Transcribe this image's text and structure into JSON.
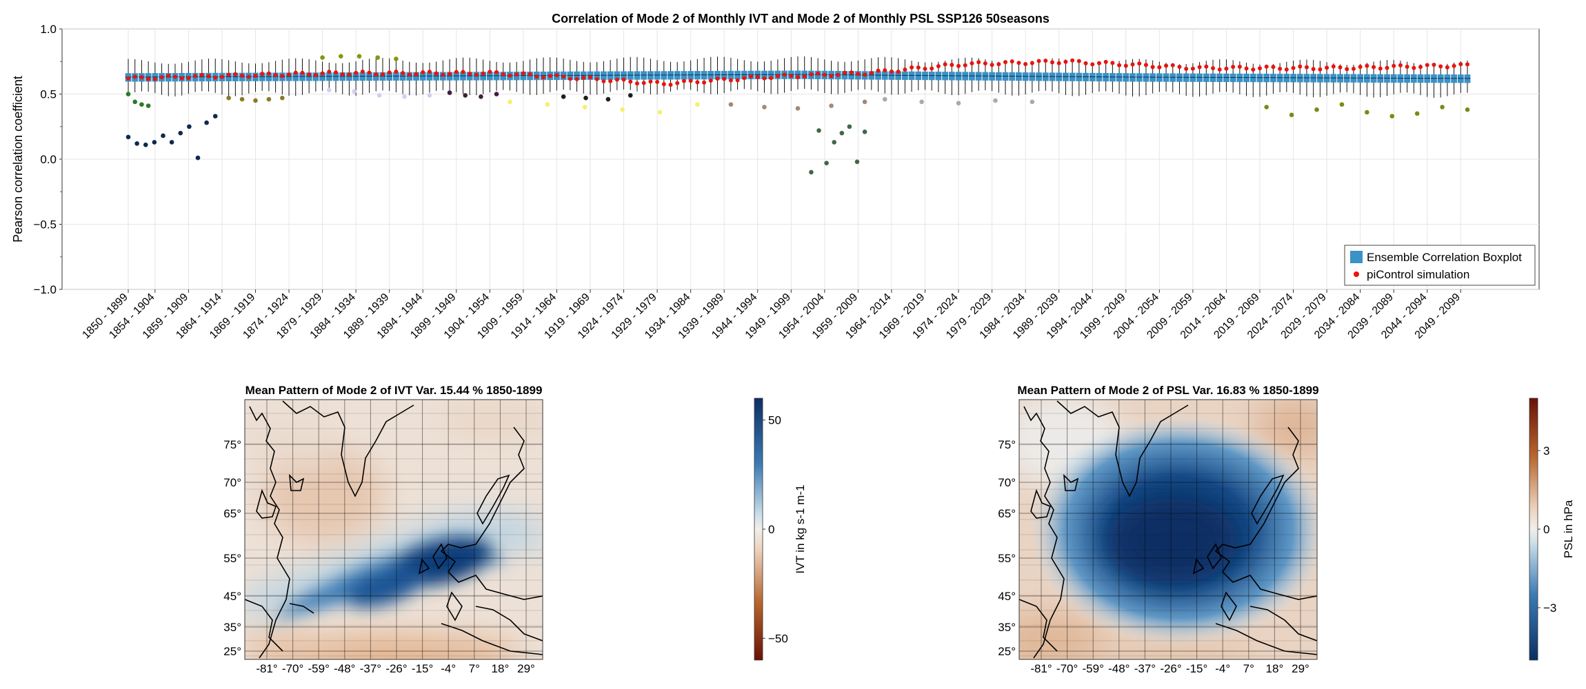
{
  "top": {
    "title": "Correlation of Mode 2 of Monthly IVT and Mode 2 of Monthly PSL SSP126 50seasons",
    "ylabel": "Pearson correlation coefficient",
    "ylim": [
      -1.0,
      1.0
    ],
    "yticks": [
      "1.0",
      "0.5",
      "0.0",
      "−0.5",
      "−1.0"
    ],
    "ytick_values": [
      1.0,
      0.5,
      0.0,
      -0.5,
      -1.0
    ],
    "legend": {
      "placement": "bottom-right",
      "items": [
        {
          "label": "Ensemble Correlation Boxplot",
          "color": "#3a92c6"
        },
        {
          "label": "piControl simulation",
          "color": "#e8140e"
        }
      ]
    },
    "xticks": [
      "1850 - 1899",
      "1854 - 1904",
      "1859 - 1909",
      "1864 - 1914",
      "1869 - 1919",
      "1874 - 1924",
      "1879 - 1929",
      "1884 - 1934",
      "1889 - 1939",
      "1894 - 1944",
      "1899 - 1949",
      "1904 - 1954",
      "1909 - 1959",
      "1914 - 1964",
      "1919 - 1969",
      "1924 - 1974",
      "1929 - 1979",
      "1934 - 1984",
      "1939 - 1989",
      "1944 - 1994",
      "1949 - 1999",
      "1954 - 2004",
      "1959 - 2009",
      "1964 - 2014",
      "1969 - 2019",
      "1974 - 2024",
      "1979 - 2029",
      "1984 - 2034",
      "1989 - 2039",
      "1994 - 2044",
      "1999 - 2049",
      "2004 - 2054",
      "2009 - 2059",
      "2014 - 2064",
      "2019 - 2069",
      "2024 - 2074",
      "2029 - 2079",
      "2034 - 2084",
      "2039 - 2089",
      "2044 - 2094",
      "2049 - 2099"
    ]
  },
  "maps": {
    "left": {
      "title": "Mean Pattern of Mode 2 of IVT Var. 15.44 % 1850-1899",
      "colorbar_label": "IVT in kg s-1 m-1",
      "colorbar_ticks": [
        "50",
        "0",
        "−50"
      ],
      "colorbar_tick_values": [
        50,
        0,
        -50
      ],
      "colorbar_range": [
        -60,
        60
      ]
    },
    "right": {
      "title": "Mean Pattern of Mode 2 of PSL Var. 16.83 % 1850-1899",
      "colorbar_label": "PSL in hPa",
      "colorbar_ticks": [
        "3",
        "0",
        "−3"
      ],
      "colorbar_tick_values": [
        3,
        0,
        -3
      ],
      "colorbar_range": [
        -5,
        5
      ]
    },
    "lat_ticks": [
      "75°",
      "70°",
      "65°",
      "55°",
      "45°",
      "35°",
      "25°"
    ],
    "lon_ticks": [
      "-81°",
      "-70°",
      "-59°",
      "-48°",
      "-37°",
      "-26°",
      "-15°",
      "-4°",
      "7°",
      "18°",
      "29°"
    ]
  },
  "colors": {
    "box": "#3a92c6",
    "picontrol": "#e8140e",
    "colormap": [
      "#0b2f63",
      "#2f6fa7",
      "#b6d2e2",
      "#f2eeea",
      "#e6c1a2",
      "#b35f2b",
      "#6a1007"
    ]
  },
  "chart_data": {
    "type": "box",
    "x_unit": "50-year window start, step 1 year",
    "n_windows": 201,
    "ensemble_median": {
      "x_start_years": [
        1850,
        1900,
        1950,
        2000,
        2050
      ],
      "y": [
        0.63,
        0.64,
        0.65,
        0.63,
        0.62
      ]
    },
    "picontrol": {
      "x_start_years": [
        1850,
        1865,
        1880,
        1905,
        1915,
        1930,
        1945,
        1960,
        1975,
        1990,
        2010,
        2030,
        2050
      ],
      "y": [
        0.62,
        0.64,
        0.66,
        0.66,
        0.63,
        0.58,
        0.63,
        0.66,
        0.73,
        0.75,
        0.7,
        0.7,
        0.72
      ]
    },
    "outlier_groups": [
      {
        "x_start_years": [
          1850,
          1863
        ],
        "y": [
          0.17,
          0.12,
          0.11,
          0.13,
          0.18,
          0.13,
          0.2,
          0.25,
          0.01,
          0.28,
          0.33
        ],
        "color": "#0d2a4e"
      },
      {
        "x_start_years": [
          1850,
          1853
        ],
        "y": [
          0.5,
          0.44,
          0.42,
          0.41
        ],
        "color": "#2a7a2a"
      },
      {
        "x_start_years": [
          1865,
          1873
        ],
        "y": [
          0.47,
          0.46,
          0.45,
          0.46,
          0.47
        ],
        "color": "#8a7a25"
      },
      {
        "x_start_years": [
          1879,
          1890
        ],
        "y": [
          0.78,
          0.79,
          0.79,
          0.78,
          0.77
        ],
        "color": "#7f9a10"
      },
      {
        "x_start_years": [
          1880,
          1895
        ],
        "y": [
          0.53,
          0.52,
          0.49,
          0.48,
          0.49
        ],
        "color": "#cfd0f4"
      },
      {
        "x_start_years": [
          1898,
          1905
        ],
        "y": [
          0.51,
          0.49,
          0.48,
          0.5
        ],
        "color": "#3d1f3f"
      },
      {
        "x_start_years": [
          1907,
          1935
        ],
        "y": [
          0.44,
          0.42,
          0.4,
          0.38,
          0.36,
          0.42
        ],
        "color": "#f5f06a"
      },
      {
        "x_start_years": [
          1915,
          1925
        ],
        "y": [
          0.48,
          0.47,
          0.46,
          0.49
        ],
        "color": "#1e1e1e"
      },
      {
        "x_start_years": [
          1940,
          1960
        ],
        "y": [
          0.42,
          0.4,
          0.39,
          0.41,
          0.44
        ],
        "color": "#a48878"
      },
      {
        "x_start_years": [
          1952,
          1960
        ],
        "y": [
          -0.1,
          0.22,
          -0.03,
          0.13,
          0.2,
          0.25,
          -0.02,
          0.21
        ],
        "color": "#3f6848"
      },
      {
        "x_start_years": [
          1963,
          1985
        ],
        "y": [
          0.46,
          0.44,
          0.43,
          0.45,
          0.44
        ],
        "color": "#b3a7a3"
      },
      {
        "x_start_years": [
          2020,
          2050
        ],
        "y": [
          0.4,
          0.34,
          0.38,
          0.42,
          0.36,
          0.33,
          0.35,
          0.4,
          0.38
        ],
        "color": "#7b8b12"
      }
    ]
  }
}
